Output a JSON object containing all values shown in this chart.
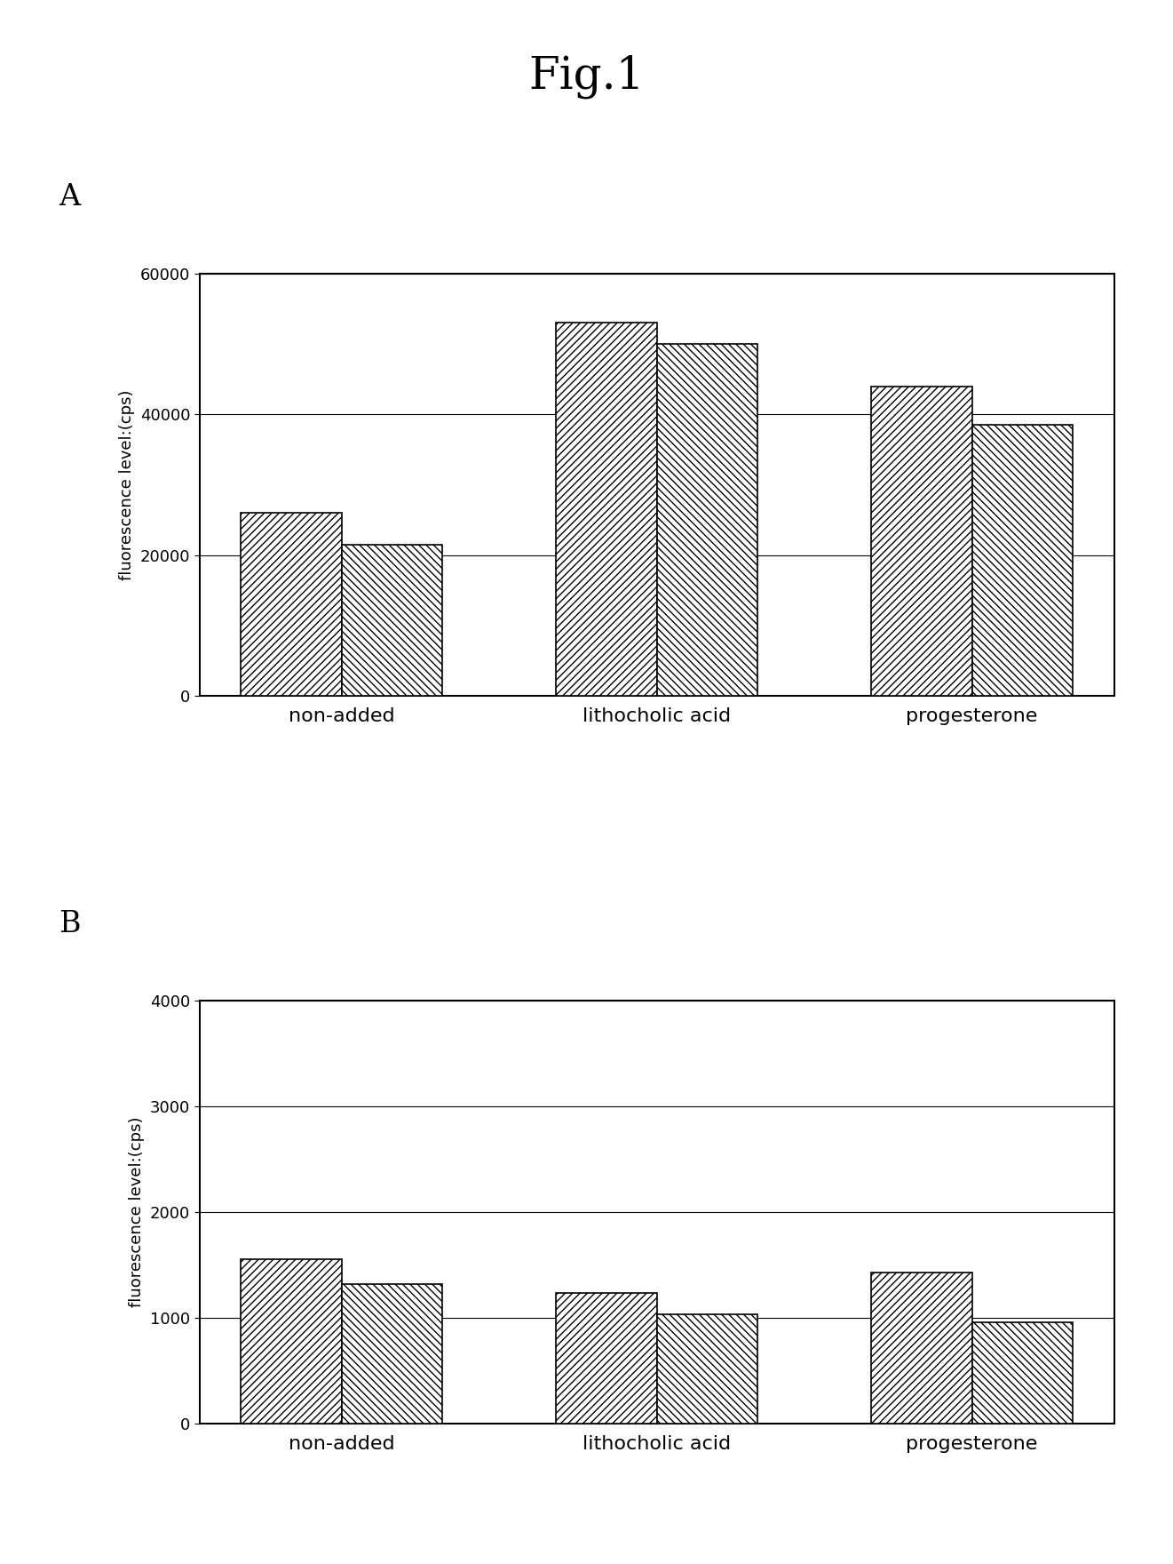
{
  "title": "Fig.1",
  "title_fontsize": 36,
  "panel_A_label": "A",
  "panel_B_label": "B",
  "categories": [
    "non-added",
    "lithocholic acid",
    "progesterone"
  ],
  "panel_A": {
    "bar1_values": [
      26000,
      53000,
      44000
    ],
    "bar2_values": [
      21500,
      50000,
      38500
    ],
    "ylim": [
      0,
      60000
    ],
    "yticks": [
      0,
      20000,
      40000,
      60000
    ],
    "ylabel": "fluorescence level:(cps)"
  },
  "panel_B": {
    "bar1_values": [
      1550,
      1230,
      1430
    ],
    "bar2_values": [
      1320,
      1030,
      960
    ],
    "ylim": [
      0,
      4000
    ],
    "yticks": [
      0,
      1000,
      2000,
      3000,
      4000
    ],
    "ylabel": "fluorescence level:(cps)"
  },
  "bar_width": 0.32,
  "hatch1": "////",
  "hatch2": "\\\\\\\\",
  "facecolor": "white",
  "edgecolor": "#000000",
  "background_color": "#ffffff",
  "xlabel_fontsize": 16,
  "ylabel_fontsize": 13,
  "tick_fontsize": 13,
  "panel_label_fontsize": 24
}
